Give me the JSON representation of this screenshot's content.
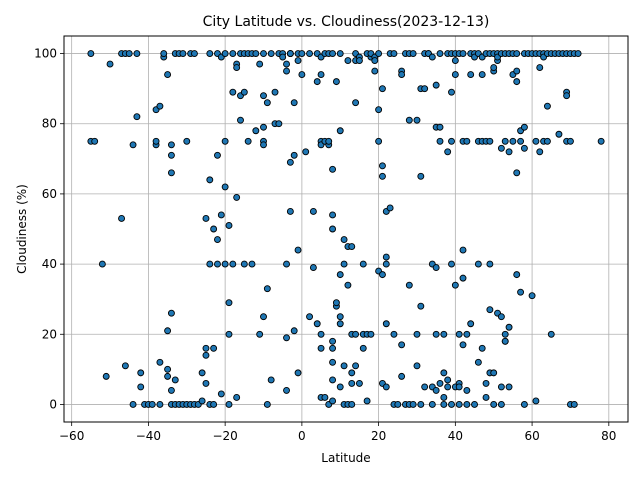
{
  "chart_data": {
    "type": "scatter",
    "title": "City Latitude vs. Cloudiness(2023-12-13)",
    "xlabel": "Latitude",
    "ylabel": "Cloudiness (%)",
    "xlim": [
      -62,
      85
    ],
    "ylim": [
      -5,
      105
    ],
    "xticks": [
      -60,
      -40,
      -20,
      0,
      20,
      40,
      60,
      80
    ],
    "yticks": [
      0,
      20,
      40,
      60,
      80,
      100
    ],
    "grid": true,
    "legend": "none",
    "marker_color": "#1f77b4",
    "marker_edge_color": "#000000",
    "points": [
      [
        -55,
        100
      ],
      [
        -55,
        75
      ],
      [
        -54,
        75
      ],
      [
        -52,
        40
      ],
      [
        -51,
        8
      ],
      [
        -50,
        97
      ],
      [
        -47,
        53
      ],
      [
        -47,
        100
      ],
      [
        -46,
        100
      ],
      [
        -46,
        11
      ],
      [
        -45,
        100
      ],
      [
        -44,
        74
      ],
      [
        -44,
        0
      ],
      [
        -43,
        100
      ],
      [
        -43,
        82
      ],
      [
        -42,
        9
      ],
      [
        -42,
        5
      ],
      [
        -41,
        0
      ],
      [
        -40,
        0
      ],
      [
        -39,
        0
      ],
      [
        -38,
        84
      ],
      [
        -38,
        74
      ],
      [
        -38,
        75
      ],
      [
        -37,
        85
      ],
      [
        -37,
        0
      ],
      [
        -37,
        12
      ],
      [
        -36,
        99
      ],
      [
        -36,
        100
      ],
      [
        -35,
        94
      ],
      [
        -35,
        21
      ],
      [
        -35,
        10
      ],
      [
        -35,
        8
      ],
      [
        -34,
        74
      ],
      [
        -34,
        71
      ],
      [
        -34,
        66
      ],
      [
        -34,
        26
      ],
      [
        -34,
        4
      ],
      [
        -34,
        0
      ],
      [
        -33,
        100
      ],
      [
        -33,
        7
      ],
      [
        -33,
        0
      ],
      [
        -32,
        100
      ],
      [
        -32,
        0
      ],
      [
        -31,
        100
      ],
      [
        -31,
        0
      ],
      [
        -30,
        75
      ],
      [
        -30,
        0
      ],
      [
        -29,
        100
      ],
      [
        -29,
        0
      ],
      [
        -28,
        100
      ],
      [
        -28,
        0
      ],
      [
        -27,
        0
      ],
      [
        -26,
        1
      ],
      [
        -26,
        9
      ],
      [
        -25,
        53
      ],
      [
        -25,
        16
      ],
      [
        -25,
        14
      ],
      [
        -25,
        6
      ],
      [
        -24,
        0
      ],
      [
        -24,
        100
      ],
      [
        -24,
        64
      ],
      [
        -24,
        40
      ],
      [
        -23,
        0
      ],
      [
        -23,
        50
      ],
      [
        -23,
        16
      ],
      [
        -22,
        100
      ],
      [
        -22,
        71
      ],
      [
        -22,
        47
      ],
      [
        -22,
        40
      ],
      [
        -21,
        3
      ],
      [
        -21,
        54
      ],
      [
        -21,
        99
      ],
      [
        -20,
        100
      ],
      [
        -20,
        62
      ],
      [
        -20,
        75
      ],
      [
        -20,
        40
      ],
      [
        -19,
        0
      ],
      [
        -19,
        29
      ],
      [
        -19,
        20
      ],
      [
        -19,
        51
      ],
      [
        -18,
        100
      ],
      [
        -18,
        40
      ],
      [
        -18,
        89
      ],
      [
        -17,
        97
      ],
      [
        -17,
        96
      ],
      [
        -17,
        59
      ],
      [
        -17,
        2
      ],
      [
        -16,
        100
      ],
      [
        -16,
        81
      ],
      [
        -16,
        88
      ],
      [
        -15,
        100
      ],
      [
        -15,
        89
      ],
      [
        -15,
        40
      ],
      [
        -14,
        100
      ],
      [
        -14,
        75
      ],
      [
        -13,
        100
      ],
      [
        -13,
        40
      ],
      [
        -12,
        100
      ],
      [
        -12,
        78
      ],
      [
        -11,
        97
      ],
      [
        -11,
        20
      ],
      [
        -10,
        100
      ],
      [
        -10,
        79
      ],
      [
        -10,
        75
      ],
      [
        -10,
        74
      ],
      [
        -10,
        88
      ],
      [
        -10,
        25
      ],
      [
        -9,
        86
      ],
      [
        -9,
        33
      ],
      [
        -9,
        0
      ],
      [
        -8,
        100
      ],
      [
        -8,
        7
      ],
      [
        -7,
        80
      ],
      [
        -7,
        89
      ],
      [
        -6,
        100
      ],
      [
        -6,
        80
      ],
      [
        -5,
        100
      ],
      [
        -5,
        99
      ],
      [
        -4,
        97
      ],
      [
        -4,
        40
      ],
      [
        -4,
        95
      ],
      [
        -4,
        19
      ],
      [
        -4,
        4
      ],
      [
        -3,
        100
      ],
      [
        -3,
        100
      ],
      [
        -3,
        100
      ],
      [
        -3,
        55
      ],
      [
        -3,
        69
      ],
      [
        -2,
        21
      ],
      [
        -2,
        86
      ],
      [
        -2,
        71
      ],
      [
        -1,
        100
      ],
      [
        -1,
        98
      ],
      [
        -1,
        44
      ],
      [
        -1,
        9
      ],
      [
        0,
        94
      ],
      [
        0,
        100
      ],
      [
        1,
        72
      ],
      [
        2,
        100
      ],
      [
        2,
        25
      ],
      [
        3,
        39
      ],
      [
        3,
        55
      ],
      [
        4,
        92
      ],
      [
        4,
        100
      ],
      [
        4,
        23
      ],
      [
        5,
        75
      ],
      [
        5,
        94
      ],
      [
        5,
        74
      ],
      [
        5,
        99
      ],
      [
        5,
        20
      ],
      [
        5,
        16
      ],
      [
        5,
        2
      ],
      [
        6,
        75
      ],
      [
        6,
        100
      ],
      [
        6,
        2
      ],
      [
        7,
        74
      ],
      [
        7,
        75
      ],
      [
        7,
        100
      ],
      [
        7,
        0
      ],
      [
        8,
        100
      ],
      [
        8,
        50
      ],
      [
        8,
        54
      ],
      [
        8,
        67
      ],
      [
        8,
        18
      ],
      [
        8,
        16
      ],
      [
        8,
        12
      ],
      [
        8,
        7
      ],
      [
        8,
        1
      ],
      [
        9,
        28
      ],
      [
        9,
        92
      ],
      [
        9,
        29
      ],
      [
        10,
        100
      ],
      [
        10,
        78
      ],
      [
        10,
        37
      ],
      [
        10,
        25
      ],
      [
        10,
        5
      ],
      [
        10,
        23
      ],
      [
        11,
        0
      ],
      [
        11,
        47
      ],
      [
        11,
        40
      ],
      [
        11,
        11
      ],
      [
        12,
        0
      ],
      [
        12,
        98
      ],
      [
        12,
        45
      ],
      [
        12,
        34
      ],
      [
        13,
        45
      ],
      [
        13,
        20
      ],
      [
        13,
        9
      ],
      [
        13,
        6
      ],
      [
        13,
        0
      ],
      [
        14,
        100
      ],
      [
        14,
        86
      ],
      [
        14,
        98
      ],
      [
        14,
        20
      ],
      [
        14,
        11
      ],
      [
        15,
        6
      ],
      [
        15,
        99
      ],
      [
        15,
        98
      ],
      [
        16,
        20
      ],
      [
        16,
        40
      ],
      [
        16,
        16
      ],
      [
        17,
        100
      ],
      [
        17,
        20
      ],
      [
        17,
        1
      ],
      [
        18,
        99
      ],
      [
        18,
        20
      ],
      [
        18,
        100
      ],
      [
        19,
        95
      ],
      [
        19,
        99
      ],
      [
        19,
        98
      ],
      [
        20,
        100
      ],
      [
        20,
        84
      ],
      [
        20,
        75
      ],
      [
        20,
        38
      ],
      [
        21,
        90
      ],
      [
        21,
        6
      ],
      [
        21,
        37
      ],
      [
        21,
        65
      ],
      [
        21,
        68
      ],
      [
        22,
        5
      ],
      [
        22,
        55
      ],
      [
        22,
        42
      ],
      [
        22,
        40
      ],
      [
        22,
        23
      ],
      [
        23,
        100
      ],
      [
        23,
        56
      ],
      [
        24,
        100
      ],
      [
        24,
        20
      ],
      [
        24,
        0
      ],
      [
        25,
        0
      ],
      [
        26,
        95
      ],
      [
        26,
        94
      ],
      [
        26,
        8
      ],
      [
        26,
        17
      ],
      [
        27,
        100
      ],
      [
        27,
        0
      ],
      [
        28,
        0
      ],
      [
        28,
        100
      ],
      [
        28,
        81
      ],
      [
        28,
        34
      ],
      [
        29,
        100
      ],
      [
        29,
        0
      ],
      [
        30,
        20
      ],
      [
        30,
        81
      ],
      [
        30,
        11
      ],
      [
        31,
        0
      ],
      [
        31,
        65
      ],
      [
        31,
        28
      ],
      [
        31,
        90
      ],
      [
        32,
        100
      ],
      [
        32,
        90
      ],
      [
        32,
        5
      ],
      [
        33,
        100
      ],
      [
        33,
        100
      ],
      [
        34,
        99
      ],
      [
        34,
        40
      ],
      [
        34,
        5
      ],
      [
        34,
        0
      ],
      [
        35,
        20
      ],
      [
        35,
        79
      ],
      [
        35,
        4
      ],
      [
        35,
        39
      ],
      [
        35,
        91
      ],
      [
        36,
        100
      ],
      [
        36,
        75
      ],
      [
        36,
        79
      ],
      [
        36,
        6
      ],
      [
        37,
        9
      ],
      [
        37,
        20
      ],
      [
        37,
        0
      ],
      [
        37,
        2
      ],
      [
        38,
        100
      ],
      [
        38,
        72
      ],
      [
        38,
        7
      ],
      [
        38,
        5
      ],
      [
        39,
        100
      ],
      [
        39,
        40
      ],
      [
        39,
        75
      ],
      [
        39,
        89
      ],
      [
        39,
        0
      ],
      [
        40,
        98
      ],
      [
        40,
        5
      ],
      [
        40,
        100
      ],
      [
        40,
        94
      ],
      [
        40,
        34
      ],
      [
        41,
        100
      ],
      [
        41,
        20
      ],
      [
        41,
        6
      ],
      [
        41,
        5
      ],
      [
        41,
        0
      ],
      [
        42,
        100
      ],
      [
        42,
        44
      ],
      [
        42,
        36
      ],
      [
        42,
        17
      ],
      [
        42,
        75
      ],
      [
        43,
        20
      ],
      [
        43,
        75
      ],
      [
        43,
        4
      ],
      [
        43,
        0
      ],
      [
        44,
        100
      ],
      [
        44,
        94
      ],
      [
        44,
        23
      ],
      [
        45,
        100
      ],
      [
        45,
        99
      ],
      [
        45,
        0
      ],
      [
        46,
        100
      ],
      [
        46,
        40
      ],
      [
        46,
        12
      ],
      [
        46,
        75
      ],
      [
        47,
        75
      ],
      [
        47,
        99
      ],
      [
        47,
        16
      ],
      [
        47,
        94
      ],
      [
        48,
        100
      ],
      [
        48,
        75
      ],
      [
        48,
        6
      ],
      [
        48,
        2
      ],
      [
        49,
        100
      ],
      [
        49,
        75
      ],
      [
        49,
        40
      ],
      [
        49,
        27
      ],
      [
        49,
        9
      ],
      [
        50,
        100
      ],
      [
        50,
        95
      ],
      [
        50,
        96
      ],
      [
        50,
        9
      ],
      [
        50,
        0
      ],
      [
        51,
        100
      ],
      [
        51,
        98
      ],
      [
        51,
        26
      ],
      [
        51,
        99
      ],
      [
        52,
        5
      ],
      [
        52,
        73
      ],
      [
        52,
        100
      ],
      [
        52,
        25
      ],
      [
        52,
        0
      ],
      [
        53,
        100
      ],
      [
        53,
        75
      ],
      [
        53,
        20
      ],
      [
        53,
        18
      ],
      [
        53,
        18
      ],
      [
        54,
        100
      ],
      [
        54,
        72
      ],
      [
        54,
        22
      ],
      [
        54,
        5
      ],
      [
        55,
        94
      ],
      [
        55,
        100
      ],
      [
        55,
        75
      ],
      [
        56,
        100
      ],
      [
        56,
        95
      ],
      [
        56,
        92
      ],
      [
        56,
        37
      ],
      [
        56,
        66
      ],
      [
        57,
        78
      ],
      [
        57,
        75
      ],
      [
        57,
        32
      ],
      [
        58,
        100
      ],
      [
        58,
        79
      ],
      [
        58,
        73
      ],
      [
        58,
        0
      ],
      [
        59,
        100
      ],
      [
        60,
        100
      ],
      [
        60,
        31
      ],
      [
        61,
        100
      ],
      [
        61,
        75
      ],
      [
        61,
        1
      ],
      [
        62,
        100
      ],
      [
        62,
        72
      ],
      [
        62,
        96
      ],
      [
        63,
        100
      ],
      [
        63,
        99
      ],
      [
        63,
        75
      ],
      [
        64,
        100
      ],
      [
        64,
        85
      ],
      [
        64,
        75
      ],
      [
        65,
        100
      ],
      [
        65,
        20
      ],
      [
        66,
        100
      ],
      [
        67,
        100
      ],
      [
        67,
        77
      ],
      [
        68,
        100
      ],
      [
        69,
        100
      ],
      [
        69,
        75
      ],
      [
        69,
        89
      ],
      [
        69,
        88
      ],
      [
        70,
        100
      ],
      [
        70,
        75
      ],
      [
        70,
        0
      ],
      [
        71,
        100
      ],
      [
        71,
        0
      ],
      [
        72,
        100
      ],
      [
        78,
        75
      ]
    ]
  }
}
